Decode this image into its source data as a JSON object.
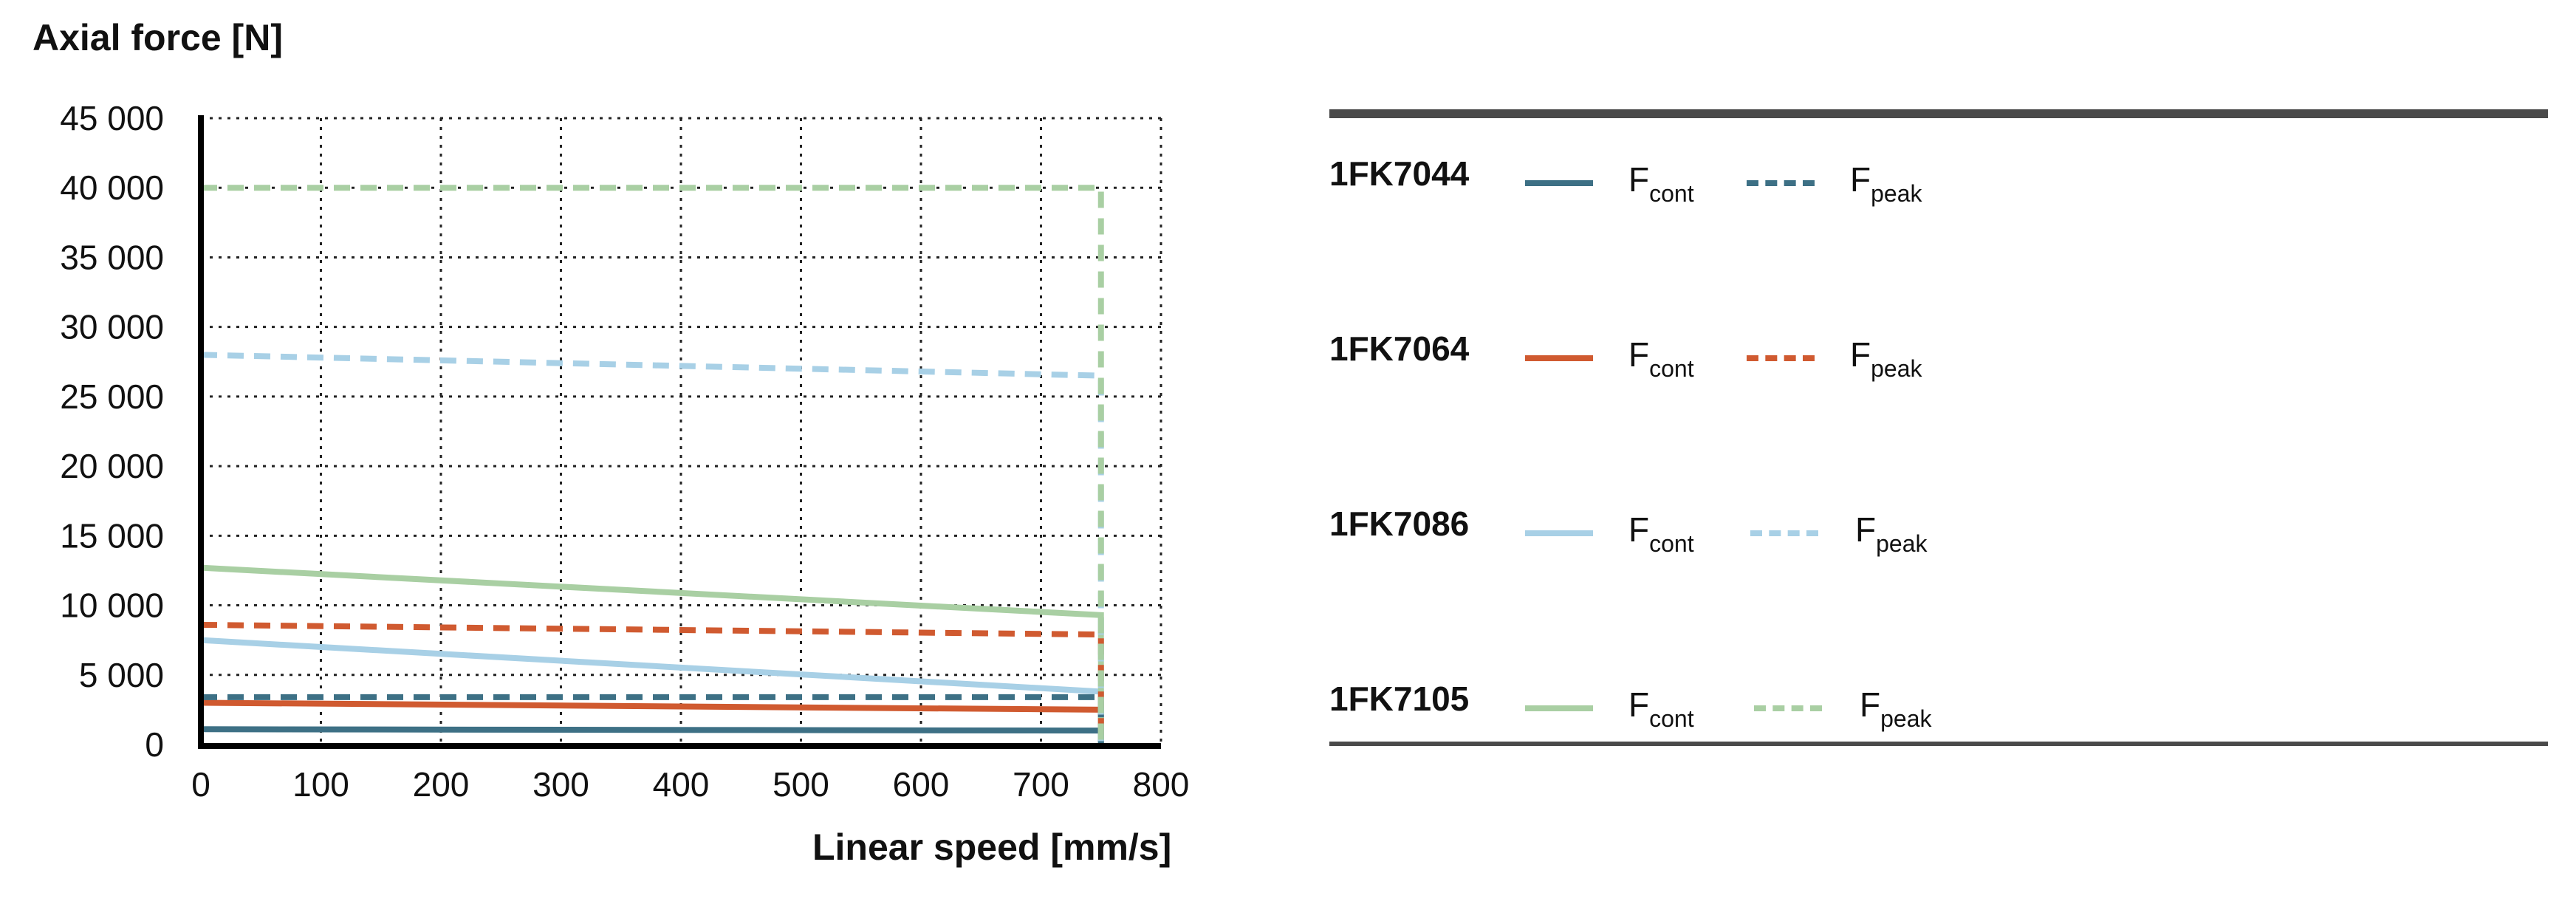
{
  "chart_data": {
    "type": "line",
    "ylabel": "Axial force [N]",
    "xlabel": "Linear speed [mm/s]",
    "xlim": [
      0,
      800
    ],
    "ylim": [
      0,
      45000
    ],
    "x_ticks": [
      0,
      100,
      200,
      300,
      400,
      500,
      600,
      700,
      800
    ],
    "y_ticks": [
      0,
      5000,
      10000,
      15000,
      20000,
      25000,
      30000,
      35000,
      40000,
      45000
    ],
    "x_tick_labels": [
      "0",
      "100",
      "200",
      "300",
      "400",
      "500",
      "600",
      "700",
      "800"
    ],
    "y_tick_labels": [
      "0",
      "5 000",
      "10 000",
      "15 000",
      "20 000",
      "25 000",
      "30 000",
      "35 000",
      "40 000",
      "45 000"
    ],
    "grid": true,
    "legend_position": "right",
    "series": [
      {
        "name": "1FK7044 Fcont",
        "motor": "1FK7044",
        "kind": "cont",
        "color": "#3d7085",
        "x": [
          0,
          750,
          750
        ],
        "y": [
          1100,
          1000,
          0
        ]
      },
      {
        "name": "1FK7044 Fpeak",
        "motor": "1FK7044",
        "kind": "peak",
        "color": "#3d7085",
        "x": [
          0,
          750,
          750
        ],
        "y": [
          3400,
          3400,
          0
        ]
      },
      {
        "name": "1FK7064 Fcont",
        "motor": "1FK7064",
        "kind": "cont",
        "color": "#d05a30",
        "x": [
          0,
          750,
          750
        ],
        "y": [
          3000,
          2500,
          0
        ]
      },
      {
        "name": "1FK7064 Fpeak",
        "motor": "1FK7064",
        "kind": "peak",
        "color": "#d05a30",
        "x": [
          0,
          750,
          750
        ],
        "y": [
          8600,
          7900,
          0
        ]
      },
      {
        "name": "1FK7086 Fcont",
        "motor": "1FK7086",
        "kind": "cont",
        "color": "#a8d0e6",
        "x": [
          0,
          750,
          750
        ],
        "y": [
          7500,
          3800,
          0
        ]
      },
      {
        "name": "1FK7086 Fpeak",
        "motor": "1FK7086",
        "kind": "peak",
        "color": "#a8d0e6",
        "x": [
          0,
          750,
          750
        ],
        "y": [
          28000,
          26500,
          0
        ]
      },
      {
        "name": "1FK7105 Fcont",
        "motor": "1FK7105",
        "kind": "cont",
        "color": "#a9cfa3",
        "x": [
          0,
          750,
          750
        ],
        "y": [
          12700,
          9300,
          0
        ]
      },
      {
        "name": "1FK7105 Fpeak",
        "motor": "1FK7105",
        "kind": "peak",
        "color": "#a9cfa3",
        "x": [
          0,
          750,
          750
        ],
        "y": [
          40000,
          40000,
          0
        ]
      }
    ]
  },
  "legend": {
    "rows": [
      {
        "model": "1FK7044",
        "color": "#3d7085",
        "cont_base": "F",
        "cont_sub": "cont",
        "peak_base": "F",
        "peak_sub": "peak"
      },
      {
        "model": "1FK7064",
        "color": "#d05a30",
        "cont_base": "F",
        "cont_sub": "cont",
        "peak_base": "F",
        "peak_sub": "peak"
      },
      {
        "model": "1FK7086",
        "color": "#a8d0e6",
        "cont_base": "F",
        "cont_sub": "cont",
        "peak_base": "F",
        "peak_sub": "peak"
      },
      {
        "model": "1FK7105",
        "color": "#a9cfa3",
        "cont_base": "F",
        "cont_sub": "cont",
        "peak_base": "F",
        "peak_sub": "peak"
      }
    ]
  }
}
